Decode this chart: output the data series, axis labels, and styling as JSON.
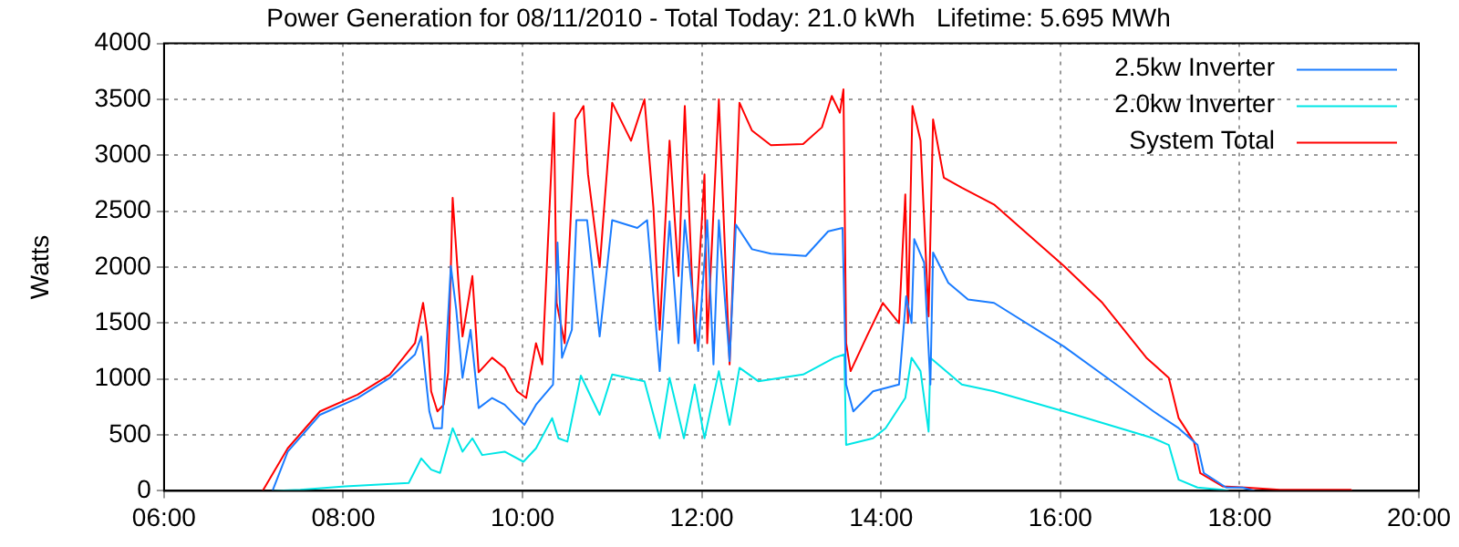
{
  "chart_data": {
    "type": "line",
    "title": "Power Generation for 08/11/2010 - Total Today: 21.0 kWh   Lifetime: 5.695 MWh",
    "ylabel": "Watts",
    "xlim": [
      6,
      20
    ],
    "xticks": [
      {
        "value": 6,
        "label": "06:00"
      },
      {
        "value": 8,
        "label": "08:00"
      },
      {
        "value": 10,
        "label": "10:00"
      },
      {
        "value": 12,
        "label": "12:00"
      },
      {
        "value": 14,
        "label": "14:00"
      },
      {
        "value": 16,
        "label": "16:00"
      },
      {
        "value": 18,
        "label": "18:00"
      },
      {
        "value": 20,
        "label": "20:00"
      }
    ],
    "ylim": [
      0,
      4000
    ],
    "yticks": [
      0,
      500,
      1000,
      1500,
      2000,
      2500,
      3000,
      3500,
      4000
    ],
    "grid": true,
    "legend": "top right",
    "marker": "none",
    "line_style": "solid",
    "series": [
      {
        "name": "2.5kw Inverter",
        "color": "#1a7cff",
        "x": [
          7.21,
          7.38,
          7.74,
          8.16,
          8.52,
          8.8,
          8.87,
          8.96,
          9.01,
          9.1,
          9.2,
          9.26,
          9.33,
          9.42,
          9.51,
          9.66,
          9.8,
          10.02,
          10.15,
          10.34,
          10.39,
          10.44,
          10.55,
          10.6,
          10.72,
          10.86,
          11.0,
          11.28,
          11.39,
          11.53,
          11.64,
          11.74,
          11.81,
          11.96,
          12.06,
          12.13,
          12.19,
          12.31,
          12.38,
          12.56,
          12.77,
          13.16,
          13.41,
          13.57,
          13.61,
          13.69,
          13.91,
          14.2,
          14.28,
          14.34,
          14.37,
          14.48,
          14.55,
          14.58,
          14.75,
          14.97,
          15.26,
          16.04,
          16.47,
          17.04,
          17.32,
          17.53,
          17.6,
          17.85,
          18.03,
          18.17
        ],
        "values": [
          0,
          350,
          680,
          830,
          1010,
          1220,
          1380,
          710,
          560,
          560,
          2010,
          1620,
          1010,
          1440,
          740,
          830,
          770,
          590,
          770,
          950,
          2220,
          1190,
          1440,
          2420,
          2420,
          1380,
          2420,
          2350,
          2420,
          1070,
          2410,
          1320,
          2420,
          1250,
          2420,
          1130,
          2420,
          1160,
          2380,
          2160,
          2120,
          2100,
          2320,
          2350,
          950,
          710,
          890,
          950,
          1740,
          1500,
          2250,
          2040,
          950,
          2130,
          1860,
          1710,
          1680,
          1290,
          1040,
          710,
          560,
          410,
          160,
          30,
          30,
          0
        ]
      },
      {
        "name": "2.0kw Inverter",
        "color": "#00e6e6",
        "x": [
          7.21,
          7.52,
          8.02,
          8.73,
          8.87,
          8.98,
          9.08,
          9.22,
          9.33,
          9.44,
          9.55,
          9.8,
          10.01,
          10.15,
          10.33,
          10.4,
          10.5,
          10.65,
          10.86,
          11.0,
          11.36,
          11.53,
          11.64,
          11.8,
          11.92,
          12.03,
          12.19,
          12.31,
          12.42,
          12.63,
          13.13,
          13.48,
          13.59,
          13.61,
          13.91,
          14.05,
          14.27,
          14.34,
          14.44,
          14.53,
          14.55,
          14.9,
          15.26,
          16.04,
          17.04,
          17.21,
          17.32,
          17.53,
          17.81,
          17.88
        ],
        "values": [
          0,
          10,
          40,
          70,
          290,
          190,
          160,
          560,
          350,
          470,
          320,
          350,
          260,
          380,
          650,
          470,
          440,
          1030,
          680,
          1040,
          980,
          470,
          1010,
          470,
          950,
          470,
          1070,
          590,
          1100,
          980,
          1040,
          1190,
          1220,
          410,
          470,
          560,
          830,
          1190,
          1070,
          530,
          1190,
          950,
          890,
          710,
          470,
          410,
          100,
          30,
          10,
          0
        ]
      },
      {
        "name": "System Total",
        "color": "#ff0000",
        "x": [
          7.1,
          7.38,
          7.74,
          8.16,
          8.52,
          8.8,
          8.89,
          8.94,
          8.98,
          9.05,
          9.12,
          9.17,
          9.22,
          9.29,
          9.33,
          9.44,
          9.51,
          9.66,
          9.8,
          9.94,
          10.04,
          10.15,
          10.22,
          10.35,
          10.38,
          10.47,
          10.59,
          10.68,
          10.73,
          10.86,
          11.0,
          11.21,
          11.36,
          11.46,
          11.53,
          11.64,
          11.74,
          11.81,
          11.92,
          12.03,
          12.06,
          12.19,
          12.31,
          12.42,
          12.56,
          12.77,
          13.13,
          13.34,
          13.45,
          13.54,
          13.58,
          13.61,
          13.66,
          13.84,
          14.02,
          14.2,
          14.27,
          14.3,
          14.35,
          14.44,
          14.53,
          14.58,
          14.7,
          14.9,
          15.26,
          16.04,
          16.47,
          16.96,
          17.21,
          17.32,
          17.49,
          17.56,
          17.81,
          18.06,
          18.45,
          19.24,
          19.25
        ],
        "values": [
          0,
          380,
          710,
          860,
          1040,
          1320,
          1680,
          1400,
          890,
          710,
          770,
          1060,
          2620,
          1800,
          1380,
          1920,
          1060,
          1190,
          1100,
          890,
          830,
          1320,
          1130,
          3380,
          1680,
          1320,
          3320,
          3440,
          2830,
          2000,
          3470,
          3130,
          3500,
          2530,
          1440,
          3130,
          1920,
          3440,
          1320,
          2830,
          1320,
          3500,
          1130,
          3470,
          3220,
          3090,
          3100,
          3250,
          3530,
          3380,
          3590,
          1320,
          1070,
          1380,
          1680,
          1500,
          2650,
          1500,
          3440,
          3130,
          1560,
          3320,
          2800,
          2710,
          2560,
          2010,
          1680,
          1190,
          1010,
          650,
          440,
          160,
          40,
          30,
          10,
          10,
          0
        ]
      }
    ]
  }
}
